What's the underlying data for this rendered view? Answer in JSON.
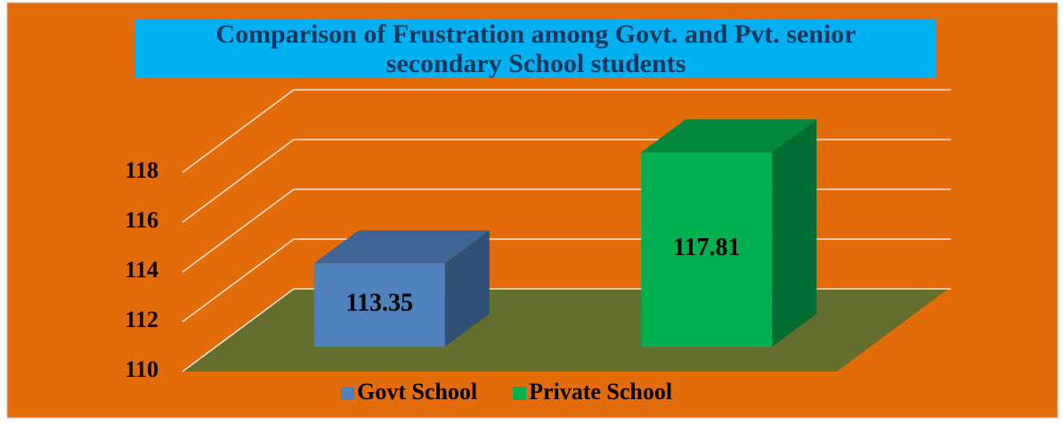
{
  "chart_data": {
    "type": "bar",
    "title": "Comparison of Frustration among Govt. and Pvt. senior secondary School students",
    "categories": [
      null
    ],
    "series": [
      {
        "name": "Govt School",
        "color": "#4f81bd",
        "values": [
          113.35
        ]
      },
      {
        "name": "Private School",
        "color": "#00b050",
        "values": [
          117.81
        ]
      }
    ],
    "ylim": [
      110,
      118
    ],
    "yticks": [
      110,
      112,
      114,
      116,
      118
    ],
    "grid": true,
    "legend": "bottom"
  }
}
